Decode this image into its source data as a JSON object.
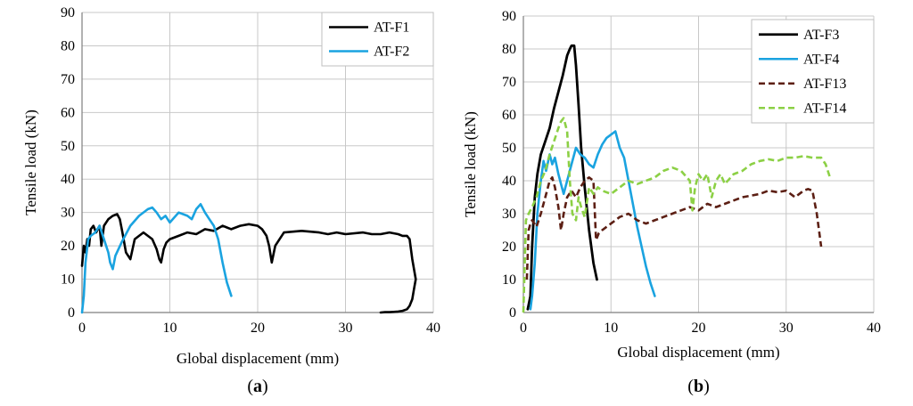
{
  "chart_data": [
    {
      "type": "line",
      "panel_label": "(a)",
      "xlabel": "Global displacement (mm)",
      "ylabel": "Tensile load (kN)",
      "xlim": [
        0,
        40
      ],
      "ylim": [
        0,
        90
      ],
      "xticks": [
        0,
        10,
        20,
        30,
        40
      ],
      "yticks": [
        0,
        10,
        20,
        30,
        40,
        50,
        60,
        70,
        80,
        90
      ],
      "grid": true,
      "legend_position": "top-right",
      "series": [
        {
          "name": "AT-F1",
          "color": "#000000",
          "dash": "solid",
          "x": [
            0,
            0.2,
            0.4,
            0.6,
            0.8,
            1.0,
            1.3,
            1.6,
            2.0,
            2.2,
            2.5,
            3.0,
            3.5,
            4.0,
            4.3,
            4.6,
            5.0,
            5.5,
            6.0,
            7.0,
            8.0,
            8.5,
            8.8,
            9.0,
            9.3,
            9.6,
            10.0,
            11.0,
            12.0,
            13.0,
            14.0,
            15.0,
            16.0,
            17.0,
            18.0,
            19.0,
            20.0,
            20.5,
            21.0,
            21.3,
            21.6,
            22.0,
            22.5,
            23.0,
            25.0,
            27.0,
            28.0,
            29.0,
            30.0,
            32.0,
            33.0,
            34.0,
            35.0,
            36.0,
            36.5,
            37.0,
            37.3,
            37.6,
            38.0,
            37.8,
            37.6,
            37.3,
            37.0,
            36.5,
            36.0,
            35.5,
            35.0,
            34.5,
            34.0
          ],
          "y": [
            14,
            20,
            18,
            22,
            20,
            25,
            26,
            24,
            26,
            20,
            26,
            28,
            29,
            29.5,
            28,
            24,
            18,
            16,
            22,
            24,
            22,
            19,
            16,
            15,
            19,
            21,
            22,
            23,
            24,
            23.5,
            25,
            24.5,
            26,
            25,
            26,
            26.5,
            26,
            25,
            23,
            20,
            15,
            20,
            22,
            24,
            24.5,
            24,
            23.5,
            24,
            23.5,
            24,
            23.5,
            23.5,
            24,
            23.5,
            23,
            23,
            22,
            16,
            10,
            7,
            4,
            2,
            1,
            0.5,
            0.3,
            0.2,
            0.1,
            0.1,
            0
          ],
          "stroke_px": 2.6
        },
        {
          "name": "AT-F2",
          "color": "#1aa3e0",
          "dash": "solid",
          "x": [
            0,
            0.2,
            0.4,
            0.7,
            1.0,
            1.5,
            2.0,
            2.5,
            3.0,
            3.2,
            3.5,
            3.8,
            4.5,
            5.5,
            6.5,
            7.5,
            8.0,
            8.5,
            9.0,
            9.5,
            10.0,
            11.0,
            12.0,
            12.5,
            13.0,
            13.5,
            14.0,
            14.5,
            15.0,
            15.5,
            16.0,
            16.5,
            17.0
          ],
          "y": [
            0,
            5,
            15,
            22,
            23,
            24,
            26,
            22,
            18,
            15,
            13,
            17,
            21,
            26,
            29,
            31,
            31.5,
            30,
            28,
            29,
            27,
            30,
            29,
            28,
            31,
            32.5,
            30,
            28,
            26,
            22,
            15,
            9,
            5
          ],
          "stroke_px": 2.6
        }
      ]
    },
    {
      "type": "line",
      "panel_label": "(b)",
      "xlabel": "Global displacement (mm)",
      "ylabel": "Tensile load (kN)",
      "xlim": [
        0,
        40
      ],
      "ylim": [
        0,
        90
      ],
      "xticks": [
        0,
        10,
        20,
        30,
        40
      ],
      "yticks": [
        0,
        10,
        20,
        30,
        40,
        50,
        60,
        70,
        80,
        90
      ],
      "grid": true,
      "legend_position": "top-right",
      "series": [
        {
          "name": "AT-F3",
          "color": "#000000",
          "dash": "solid",
          "x": [
            0.5,
            0.8,
            1.0,
            1.3,
            1.6,
            2.0,
            2.5,
            3.0,
            3.5,
            4.0,
            4.5,
            5.0,
            5.3,
            5.5,
            5.8,
            6.0,
            6.3,
            6.6,
            7.0,
            7.5,
            8.0,
            8.4
          ],
          "y": [
            1,
            5,
            20,
            35,
            42,
            48,
            52,
            56,
            62,
            67,
            72,
            78,
            80,
            81,
            81,
            75,
            63,
            50,
            38,
            25,
            15,
            10
          ],
          "stroke_px": 2.8
        },
        {
          "name": "AT-F4",
          "color": "#1aa3e0",
          "dash": "solid",
          "x": [
            0.8,
            1.0,
            1.3,
            1.6,
            2.0,
            2.3,
            2.6,
            3.0,
            3.3,
            3.6,
            4.0,
            4.3,
            4.6,
            5.0,
            5.5,
            6.0,
            6.5,
            7.0,
            7.5,
            8.0,
            8.5,
            9.0,
            9.5,
            10.0,
            10.5,
            11.0,
            11.5,
            12.0,
            12.5,
            13.0,
            13.5,
            14.0,
            14.5,
            15.0
          ],
          "y": [
            1,
            5,
            15,
            30,
            40,
            46,
            43,
            48,
            45,
            47,
            42,
            39,
            36,
            40,
            45,
            50,
            48,
            47,
            45,
            44,
            48,
            51,
            53,
            54,
            55,
            50,
            47,
            40,
            33,
            26,
            20,
            14,
            9,
            5
          ],
          "stroke_px": 2.6
        },
        {
          "name": "AT-F13",
          "color": "#5c1f14",
          "dash": "dashed",
          "x": [
            0.4,
            0.6,
            0.8,
            1.0,
            1.5,
            2.0,
            2.5,
            3.0,
            3.3,
            3.6,
            4.0,
            4.3,
            4.6,
            5.0,
            5.5,
            6.0,
            6.5,
            7.0,
            7.5,
            8.0,
            8.3,
            8.6,
            9.0,
            10.0,
            11.0,
            12.0,
            13.0,
            14.0,
            15.0,
            16.0,
            17.0,
            18.0,
            19.0,
            20.0,
            21.0,
            22.0,
            23.0,
            24.0,
            25.0,
            26.0,
            27.0,
            28.0,
            29.0,
            30.0,
            31.0,
            31.5,
            32.0,
            32.5,
            33.0,
            33.5,
            34.0
          ],
          "y": [
            10,
            25,
            27,
            28,
            26,
            30,
            35,
            40,
            41,
            38,
            32,
            25,
            30,
            35,
            37,
            35,
            38,
            40,
            41,
            40,
            22,
            24,
            25,
            27,
            29,
            30,
            28,
            27,
            28,
            29,
            30,
            31,
            32,
            31,
            33,
            32,
            33,
            34,
            35,
            35.5,
            36,
            37,
            36.5,
            37,
            35,
            36,
            37,
            37.5,
            37,
            30,
            20
          ],
          "stroke_px": 2.6
        },
        {
          "name": "AT-F14",
          "color": "#8cd045",
          "dash": "dashed",
          "x": [
            0,
            0.3,
            0.6,
            1.0,
            1.5,
            2.0,
            2.5,
            3.0,
            3.5,
            4.0,
            4.3,
            4.6,
            5.0,
            5.3,
            5.6,
            6.0,
            6.3,
            6.6,
            7.0,
            7.5,
            8.0,
            8.5,
            9.0,
            10.0,
            11.0,
            12.0,
            13.0,
            14.0,
            15.0,
            16.0,
            17.0,
            18.0,
            19.0,
            19.3,
            19.6,
            20.0,
            20.5,
            21.0,
            21.5,
            22.0,
            22.5,
            23.0,
            24.0,
            25.0,
            26.0,
            27.0,
            28.0,
            29.0,
            30.0,
            31.0,
            32.0,
            33.0,
            34.0,
            34.5,
            35.0
          ],
          "y": [
            0,
            28,
            30,
            32,
            35,
            40,
            43,
            48,
            52,
            56,
            58,
            59,
            55,
            40,
            30,
            28,
            35,
            32,
            29,
            38,
            36,
            38,
            37,
            36,
            38,
            40,
            39,
            40,
            41,
            43,
            44,
            43,
            40,
            31,
            38,
            42,
            40,
            42,
            35,
            40,
            42,
            39,
            42,
            43,
            45,
            46,
            46.5,
            46,
            47,
            47,
            47.5,
            47,
            47,
            45,
            41
          ],
          "stroke_px": 2.6
        }
      ]
    }
  ]
}
